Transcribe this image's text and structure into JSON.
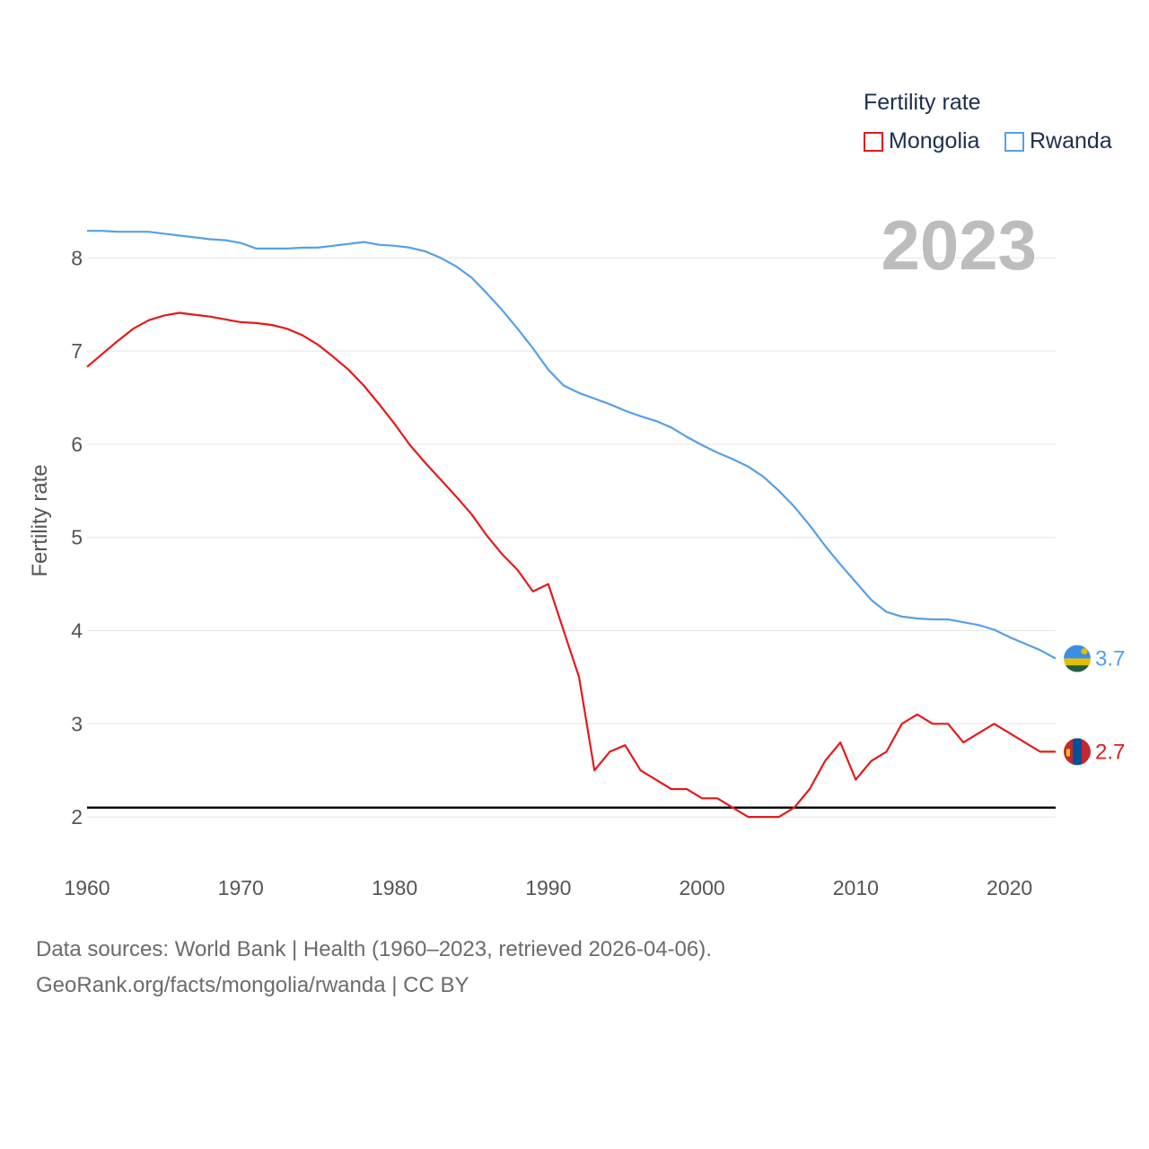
{
  "legend": {
    "title": "Fertility rate",
    "items": [
      {
        "label": "Mongolia",
        "color": "#e31a1c"
      },
      {
        "label": "Rwanda",
        "color": "#56a0e6"
      }
    ]
  },
  "footer": {
    "line1": "Data sources: World Bank | Health (1960–2023, retrieved 2026-04-06).",
    "line2": "GeoRank.org/facts/mongolia/rwanda | CC BY"
  },
  "chart_data": {
    "type": "line",
    "year_label": "2023",
    "ylabel": "Fertility rate",
    "xlim": [
      1960,
      2023
    ],
    "ylim": [
      1.5,
      8.6
    ],
    "xticks": [
      1960,
      1970,
      1980,
      1990,
      2000,
      2010,
      2020
    ],
    "yticks": [
      2,
      3,
      4,
      5,
      6,
      7,
      8
    ],
    "grid": true,
    "reference_line": 2.1,
    "x": [
      1960,
      1961,
      1962,
      1963,
      1964,
      1965,
      1966,
      1967,
      1968,
      1969,
      1970,
      1971,
      1972,
      1973,
      1974,
      1975,
      1976,
      1977,
      1978,
      1979,
      1980,
      1981,
      1982,
      1983,
      1984,
      1985,
      1986,
      1987,
      1988,
      1989,
      1990,
      1991,
      1992,
      1993,
      1994,
      1995,
      1996,
      1997,
      1998,
      1999,
      2000,
      2001,
      2002,
      2003,
      2004,
      2005,
      2006,
      2007,
      2008,
      2009,
      2010,
      2011,
      2012,
      2013,
      2014,
      2015,
      2016,
      2017,
      2018,
      2019,
      2020,
      2021,
      2022,
      2023
    ],
    "series": [
      {
        "name": "Mongolia",
        "color": "#e31a1c",
        "end_label": "2.7",
        "values": [
          6.83,
          6.97,
          7.11,
          7.24,
          7.33,
          7.38,
          7.41,
          7.39,
          7.37,
          7.34,
          7.31,
          7.3,
          7.28,
          7.24,
          7.17,
          7.07,
          6.94,
          6.8,
          6.63,
          6.43,
          6.22,
          5.99,
          5.8,
          5.62,
          5.44,
          5.25,
          5.02,
          4.82,
          4.65,
          4.42,
          4.5,
          4.0,
          3.5,
          2.5,
          2.7,
          2.77,
          2.5,
          2.4,
          2.3,
          2.3,
          2.2,
          2.2,
          2.1,
          2.0,
          2.0,
          2.0,
          2.1,
          2.3,
          2.6,
          2.8,
          2.4,
          2.6,
          2.7,
          3.0,
          3.1,
          3.0,
          3.0,
          2.8,
          2.9,
          3.0,
          2.9,
          2.8,
          2.7,
          2.7
        ]
      },
      {
        "name": "Rwanda",
        "color": "#56a0e6",
        "end_label": "3.7",
        "values": [
          8.29,
          8.29,
          8.28,
          8.28,
          8.28,
          8.26,
          8.24,
          8.22,
          8.2,
          8.19,
          8.16,
          8.1,
          8.1,
          8.1,
          8.11,
          8.11,
          8.13,
          8.15,
          8.17,
          8.14,
          8.13,
          8.11,
          8.07,
          8.0,
          7.91,
          7.79,
          7.62,
          7.44,
          7.24,
          7.03,
          6.8,
          6.63,
          6.55,
          6.49,
          6.43,
          6.36,
          6.3,
          6.25,
          6.18,
          6.08,
          5.99,
          5.91,
          5.84,
          5.76,
          5.65,
          5.5,
          5.33,
          5.13,
          4.91,
          4.71,
          4.52,
          4.33,
          4.2,
          4.15,
          4.13,
          4.12,
          4.12,
          4.09,
          4.06,
          4.01,
          3.93,
          3.86,
          3.79,
          3.7
        ]
      }
    ]
  }
}
